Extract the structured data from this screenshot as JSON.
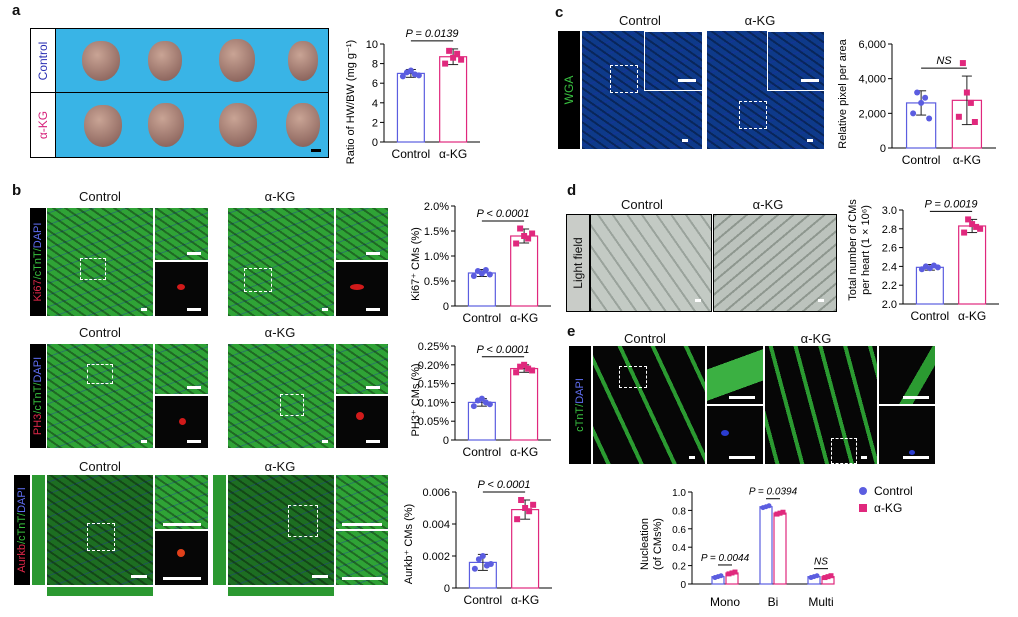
{
  "panels": {
    "a": {
      "letter": "a",
      "row_labels": [
        "Control",
        "α-KG"
      ],
      "chart": {
        "ylabel": "Ratio of HW/BW (mg g⁻¹)",
        "ticks": [
          "0",
          "2",
          "4",
          "6",
          "8",
          "10"
        ],
        "categories": [
          "Control",
          "α-KG"
        ],
        "pvalue": "P = 0.0139"
      }
    },
    "b": {
      "letter": "b",
      "row1": {
        "left": "Control",
        "right": "α-KG",
        "stain": {
          "a": "Ki67",
          "b": "/cTnT/",
          "c": "DAPI"
        }
      },
      "row2": {
        "left": "Control",
        "right": "α-KG",
        "stain": {
          "a": "PH3",
          "b": "/cTnT/",
          "c": "DAPI"
        }
      },
      "row3": {
        "left": "Control",
        "right": "α-KG",
        "stain": {
          "a": "Aurkb",
          "b": "/cTnT/",
          "c": "DAPI"
        }
      },
      "chart1": {
        "ylabel": "Ki67⁺ CMs (%)",
        "ticks": [
          "0",
          "0.5%",
          "1.0%",
          "1.5%",
          "2.0%"
        ],
        "categories": [
          "Control",
          "α-KG"
        ],
        "pvalue": "P < 0.0001"
      },
      "chart2": {
        "ylabel": "PH3⁺ CMs (%)",
        "ticks": [
          "0",
          "0.05%",
          "0.10%",
          "0.15%",
          "0.20%",
          "0.25%"
        ],
        "categories": [
          "Control",
          "α-KG"
        ],
        "pvalue": "P < 0.0001"
      },
      "chart3": {
        "ylabel": "Aurkb⁺ CMs (%)",
        "ticks": [
          "0",
          "0.002",
          "0.004",
          "0.006"
        ],
        "categories": [
          "Control",
          "α-KG"
        ],
        "pvalue": "P < 0.0001"
      }
    },
    "c": {
      "letter": "c",
      "col_labels": [
        "Control",
        "α-KG"
      ],
      "stain": "WGA",
      "chart": {
        "ylabel": "Relative pixel per area",
        "ticks": [
          "0",
          "2,000",
          "4,000",
          "6,000"
        ],
        "categories": [
          "Control",
          "α-KG"
        ],
        "pvalue": "NS"
      }
    },
    "d": {
      "letter": "d",
      "col_labels": [
        "Control",
        "α-KG"
      ],
      "stain": "Light field",
      "chart": {
        "ylabel1": "Total number of CMs",
        "ylabel2": "per heart (1 × 10⁶)",
        "ticks": [
          "2.0",
          "2.2",
          "2.4",
          "2.6",
          "2.8",
          "3.0"
        ],
        "categories": [
          "Control",
          "α-KG"
        ],
        "pvalue": "P = 0.0019"
      }
    },
    "e": {
      "letter": "e",
      "col_labels": [
        "Control",
        "α-KG"
      ],
      "stain": {
        "a": "cTnT",
        "b": "/",
        "c": "DAPI"
      },
      "chart": {
        "ylabel1": "Nucleation",
        "ylabel2": "(of CMs%)",
        "ticks": [
          "0",
          "0.2",
          "0.4",
          "0.6",
          "0.8",
          "1.0"
        ],
        "categories": [
          "Mono",
          "Bi",
          "Multi"
        ],
        "pvalues": [
          "P = 0.0044",
          "P = 0.0394",
          "NS"
        ],
        "legend": [
          "Control",
          "α-KG"
        ]
      }
    }
  },
  "colors": {
    "control": "#5b5de0",
    "akg": "#e0287d",
    "tissue_green": "#2fa336",
    "dapi_blue": "#2a3cd0"
  },
  "chart_data": [
    {
      "type": "bar",
      "panel": "a",
      "categories": [
        "Control",
        "α-KG"
      ],
      "values": [
        7.0,
        8.7
      ],
      "errors": [
        0.4,
        0.8
      ],
      "points": [
        [
          6.7,
          7.1,
          7.3,
          6.9,
          6.8
        ],
        [
          8.0,
          9.3,
          8.6,
          9.0,
          8.4
        ]
      ],
      "ylabel": "Ratio of HW/BW (mg g⁻¹)",
      "ylim": [
        0,
        10
      ],
      "annotation": "P = 0.0139"
    },
    {
      "type": "bar",
      "panel": "b",
      "categories": [
        "Control",
        "α-KG"
      ],
      "values": [
        0.66,
        1.4
      ],
      "errors": [
        0.07,
        0.14
      ],
      "points": [
        [
          0.6,
          0.7,
          0.65,
          0.72,
          0.63
        ],
        [
          1.25,
          1.55,
          1.4,
          1.35,
          1.45
        ]
      ],
      "ylabel": "Ki67⁺ CMs (%)",
      "ylim": [
        0,
        2.0
      ],
      "annotation": "P < 0.0001"
    },
    {
      "type": "bar",
      "panel": "b",
      "categories": [
        "Control",
        "α-KG"
      ],
      "values": [
        0.1,
        0.19
      ],
      "errors": [
        0.01,
        0.01
      ],
      "points": [
        [
          0.09,
          0.105,
          0.11,
          0.1,
          0.095
        ],
        [
          0.18,
          0.195,
          0.2,
          0.19,
          0.185
        ]
      ],
      "ylabel": "PH3⁺ CMs (%)",
      "ylim": [
        0,
        0.25
      ],
      "annotation": "P < 0.0001"
    },
    {
      "type": "bar",
      "panel": "b",
      "categories": [
        "Control",
        "α-KG"
      ],
      "values": [
        0.0016,
        0.0049
      ],
      "errors": [
        0.0005,
        0.0006
      ],
      "points": [
        [
          0.0012,
          0.0018,
          0.002,
          0.0014,
          0.0015
        ],
        [
          0.0043,
          0.0055,
          0.005,
          0.0048,
          0.0052
        ]
      ],
      "ylabel": "Aurkb⁺ CMs (%)",
      "ylim": [
        0,
        0.006
      ],
      "annotation": "P < 0.0001"
    },
    {
      "type": "bar",
      "panel": "c",
      "categories": [
        "Control",
        "α-KG"
      ],
      "values": [
        2600,
        2750
      ],
      "errors": [
        700,
        1400
      ],
      "points": [
        [
          2000,
          3200,
          2600,
          2900,
          1700
        ],
        [
          1800,
          4900,
          3200,
          2600,
          1500
        ]
      ],
      "ylabel": "Relative pixel per area",
      "ylim": [
        0,
        6000
      ],
      "annotation": "NS"
    },
    {
      "type": "bar",
      "panel": "d",
      "categories": [
        "Control",
        "α-KG"
      ],
      "values": [
        2.39,
        2.83
      ],
      "errors": [
        0.03,
        0.07
      ],
      "points": [
        [
          2.37,
          2.4,
          2.38,
          2.41,
          2.39
        ],
        [
          2.76,
          2.9,
          2.85,
          2.82,
          2.8
        ]
      ],
      "ylabel": "Total number of CMs per heart (1 × 10⁶)",
      "ylim": [
        2.0,
        3.0
      ],
      "annotation": "P = 0.0019"
    },
    {
      "type": "bar",
      "panel": "e",
      "categories": [
        "Mono",
        "Bi",
        "Multi"
      ],
      "series": [
        {
          "name": "Control",
          "values": [
            0.08,
            0.84,
            0.08
          ]
        },
        {
          "name": "α-KG",
          "values": [
            0.12,
            0.77,
            0.08
          ]
        }
      ],
      "ylabel": "Nucleation (of CMs%)",
      "ylim": [
        0,
        1.0
      ],
      "annotations": [
        "P = 0.0044",
        "P = 0.0394",
        "NS"
      ]
    }
  ]
}
